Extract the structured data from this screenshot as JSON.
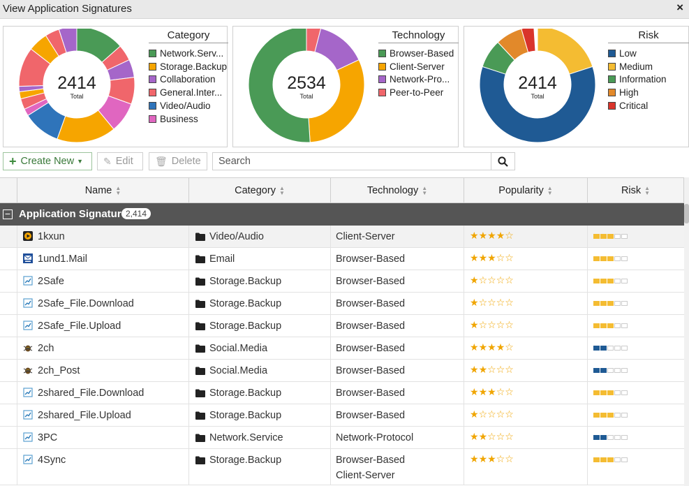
{
  "window": {
    "title": "View Application Signatures",
    "close_label": "×"
  },
  "widgets": [
    {
      "id": "category",
      "total": "2414",
      "total_label": "Total",
      "legend_title": "Category",
      "legend": [
        {
          "label": "Network.Serv...",
          "color": "#4a9a56"
        },
        {
          "label": "Storage.Backup",
          "color": "#f6a500"
        },
        {
          "label": "Collaboration",
          "color": "#a566c9"
        },
        {
          "label": "General.Inter...",
          "color": "#f0666b"
        },
        {
          "label": "Video/Audio",
          "color": "#2f74ba"
        },
        {
          "label": "Business",
          "color": "#e066c0"
        }
      ]
    },
    {
      "id": "technology",
      "total": "2534",
      "total_label": "Total",
      "legend_title": "Technology",
      "legend": [
        {
          "label": "Browser-Based",
          "color": "#4a9a56"
        },
        {
          "label": "Client-Server",
          "color": "#f6a500"
        },
        {
          "label": "Network-Pro...",
          "color": "#a566c9"
        },
        {
          "label": "Peer-to-Peer",
          "color": "#f0666b"
        }
      ]
    },
    {
      "id": "risk",
      "total": "2414",
      "total_label": "Total",
      "legend_title": "Risk",
      "legend": [
        {
          "label": "Low",
          "color": "#1f5a94"
        },
        {
          "label": "Medium",
          "color": "#f4bc32"
        },
        {
          "label": "Information",
          "color": "#4a9a56"
        },
        {
          "label": "High",
          "color": "#e2892a"
        },
        {
          "label": "Critical",
          "color": "#d9342b"
        }
      ]
    }
  ],
  "toolbar": {
    "create_label": "Create New",
    "edit_label": "Edit",
    "delete_label": "Delete",
    "search_placeholder": "Search"
  },
  "table": {
    "columns": [
      "Name",
      "Category",
      "Technology",
      "Popularity",
      "Risk"
    ],
    "group_label": "Application Signature",
    "group_count": "2,414",
    "rows": [
      {
        "name": "1kxun",
        "icon": "video-app-icon",
        "category": "Video/Audio",
        "technology": [
          "Client-Server"
        ],
        "popularity": 4,
        "risk": "medium"
      },
      {
        "name": "1und1.Mail",
        "icon": "mail-app-icon",
        "category": "Email",
        "technology": [
          "Browser-Based"
        ],
        "popularity": 3,
        "risk": "medium"
      },
      {
        "name": "2Safe",
        "icon": "generic-app-icon",
        "category": "Storage.Backup",
        "technology": [
          "Browser-Based"
        ],
        "popularity": 1,
        "risk": "medium"
      },
      {
        "name": "2Safe_File.Download",
        "icon": "generic-app-icon",
        "category": "Storage.Backup",
        "technology": [
          "Browser-Based"
        ],
        "popularity": 1,
        "risk": "medium"
      },
      {
        "name": "2Safe_File.Upload",
        "icon": "generic-app-icon",
        "category": "Storage.Backup",
        "technology": [
          "Browser-Based"
        ],
        "popularity": 1,
        "risk": "medium"
      },
      {
        "name": "2ch",
        "icon": "bug-app-icon",
        "category": "Social.Media",
        "technology": [
          "Browser-Based"
        ],
        "popularity": 4,
        "risk": "low"
      },
      {
        "name": "2ch_Post",
        "icon": "bug-app-icon",
        "category": "Social.Media",
        "technology": [
          "Browser-Based"
        ],
        "popularity": 2,
        "risk": "low"
      },
      {
        "name": "2shared_File.Download",
        "icon": "generic-app-icon",
        "category": "Storage.Backup",
        "technology": [
          "Browser-Based"
        ],
        "popularity": 3,
        "risk": "medium"
      },
      {
        "name": "2shared_File.Upload",
        "icon": "generic-app-icon",
        "category": "Storage.Backup",
        "technology": [
          "Browser-Based"
        ],
        "popularity": 1,
        "risk": "medium"
      },
      {
        "name": "3PC",
        "icon": "generic-app-icon",
        "category": "Network.Service",
        "technology": [
          "Network-Protocol"
        ],
        "popularity": 2,
        "risk": "low"
      },
      {
        "name": "4Sync",
        "icon": "generic-app-icon",
        "category": "Storage.Backup",
        "technology": [
          "Browser-Based",
          "Client-Server"
        ],
        "popularity": 3,
        "risk": "medium"
      }
    ]
  },
  "risk_colors": {
    "low": "#1f5a94",
    "medium": "#f4bc32"
  },
  "star_color": "#f0a500"
}
